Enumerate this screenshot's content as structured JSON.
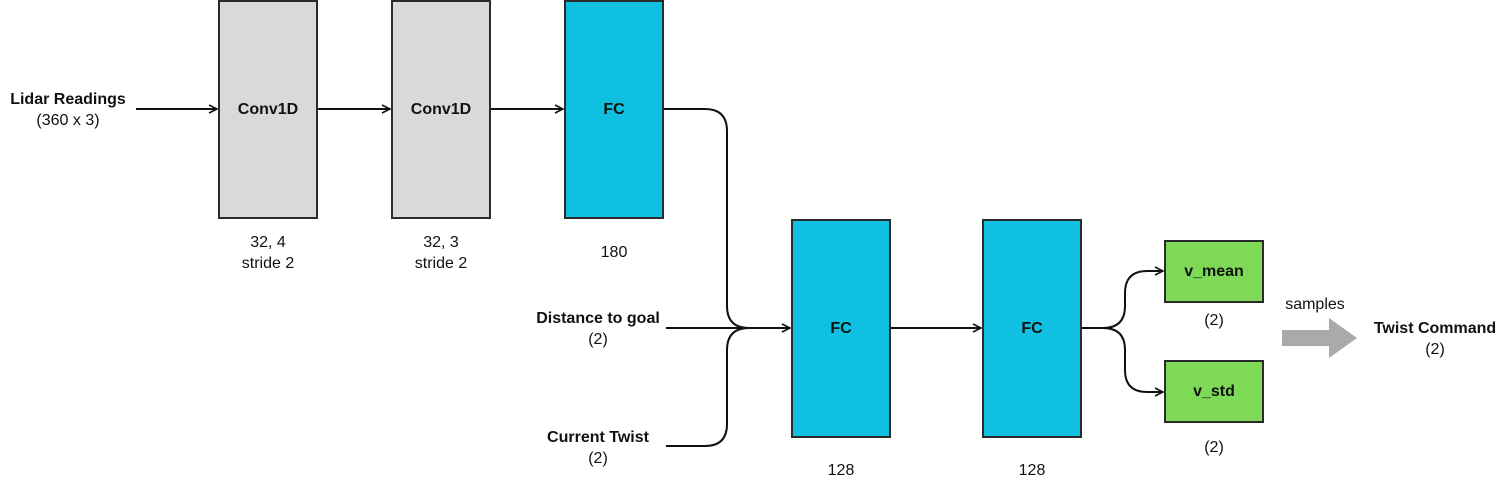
{
  "inputs": {
    "lidar": {
      "name": "Lidar Readings",
      "shape": "(360 x 3)"
    },
    "distance": {
      "name": "Distance to goal",
      "shape": "(2)"
    },
    "twist": {
      "name": "Current Twist",
      "shape": "(2)"
    }
  },
  "layers": {
    "conv1": {
      "label": "Conv1D",
      "param1": "32, 4",
      "param2": "stride 2"
    },
    "conv2": {
      "label": "Conv1D",
      "param1": "32, 3",
      "param2": "stride 2"
    },
    "fc1": {
      "label": "FC",
      "size": "180"
    },
    "fc2": {
      "label": "FC",
      "size": "128"
    },
    "fc3": {
      "label": "FC",
      "size": "128"
    }
  },
  "outputs": {
    "v_mean": {
      "label": "v_mean",
      "shape": "(2)"
    },
    "v_std": {
      "label": "v_std",
      "shape": "(2)"
    }
  },
  "sampling": {
    "arrow_label": "samples"
  },
  "result": {
    "name": "Twist Command",
    "shape": "(2)"
  },
  "colors": {
    "conv": "#d9d9d9",
    "fc": "#0fc0e0",
    "output": "#7ed957",
    "sample_arrow": "#aaaaaa"
  }
}
